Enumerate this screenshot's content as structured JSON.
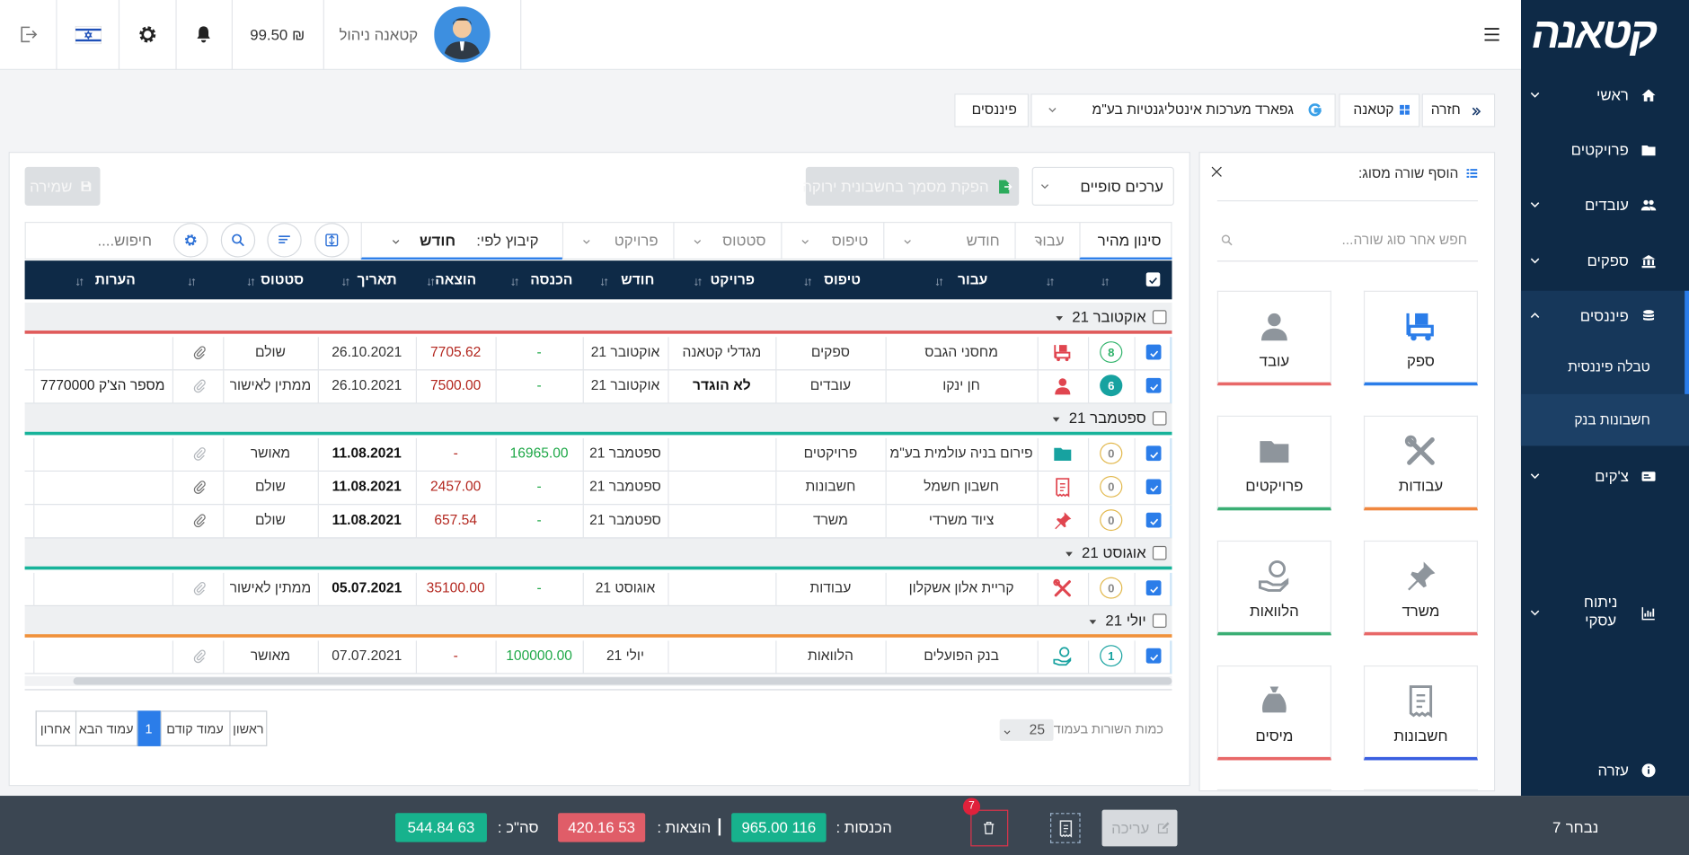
{
  "sidebar": {
    "logo": "קטאנה",
    "menu": [
      "ראשי",
      "פרויקטים",
      "עובדים",
      "ספקים",
      "פיננסים",
      "צ'קים",
      "ניתוח עסקי",
      "עזרה"
    ],
    "submenu": [
      "טבלה פיננסית",
      "חשבונות בנק"
    ]
  },
  "topbar": {
    "user": "קטאנה ניהול",
    "balance": "₪ 99.50"
  },
  "breadcrumb": [
    "חזרה",
    "קטאנה",
    "גפארד מערכות אינטליגנטיות בע\"מ",
    "פיננסים"
  ],
  "add_panel": {
    "title": "הוסף שורה מסוג:",
    "search_placeholder": "חפש אחר סוג שורה...",
    "types": [
      "ספק",
      "עובד",
      "עבודות",
      "פרויקטים",
      "משרד",
      "הלוואות",
      "חשבונות",
      "מיסים"
    ]
  },
  "toolbar": {
    "view": "ערכים סופיים",
    "invoice_button": "הפקת מסמך בחשבונית ירוקה",
    "save_button": "שמירה"
  },
  "filters": {
    "tabs": [
      "סינון מהיר",
      "עבור",
      "חודש",
      "טיפוס",
      "סטטוס",
      "פרויקט"
    ],
    "group_by_label": "קיבוץ לפי:",
    "group_by": "חודש",
    "search_placeholder": "חיפוש...."
  },
  "table": {
    "columns": {
      "for": "עבור",
      "type": "טיפוס",
      "project": "פרויקט",
      "month": "חודש",
      "income": "הכנסה",
      "expense": "הוצאה",
      "date": "תאריך",
      "status": "סטטוס",
      "notes": "הערות"
    },
    "groups": [
      {
        "label": "אוקטובר 21",
        "rows": [
          {
            "count": "8",
            "for": "מחסני הגבס",
            "type": "ספקים",
            "project": "מגדלי קטאנה",
            "month": "אוקטובר 21",
            "income": "-",
            "expense": "7705.62",
            "date": "26.10.2021",
            "status": "שולם"
          },
          {
            "count": "6",
            "for": "חן ינקו",
            "type": "עובדים",
            "project": "לא הוגדר",
            "month": "אוקטובר 21",
            "income": "-",
            "expense": "7500.00",
            "date": "26.10.2021",
            "status": "ממתין לאישור",
            "notes": "מספר הצ'ק 7770000"
          }
        ]
      },
      {
        "label": "ספטמבר 21",
        "rows": [
          {
            "count": "0",
            "for": "פירום בניה עולמית בע\"מ",
            "type": "פרויקטים",
            "month": "ספטמבר 21",
            "income": "16965.00",
            "expense": "-",
            "date": "11.08.2021",
            "status": "מאושר"
          },
          {
            "count": "0",
            "for": "חשבון חשמל",
            "type": "חשבונות",
            "month": "ספטמבר 21",
            "income": "-",
            "expense": "2457.00",
            "date": "11.08.2021",
            "status": "שולם"
          },
          {
            "count": "0",
            "for": "ציוד משרדי",
            "type": "משרד",
            "month": "ספטמבר 21",
            "income": "-",
            "expense": "657.54",
            "date": "11.08.2021",
            "status": "שולם"
          }
        ]
      },
      {
        "label": "אוגוסט 21",
        "rows": [
          {
            "count": "0",
            "for": "קריית אלון אשקלון",
            "type": "עבודות",
            "month": "אוגוסט 21",
            "income": "-",
            "expense": "35100.00",
            "date": "05.07.2021",
            "status": "ממתין לאישור"
          }
        ]
      },
      {
        "label": "יולי 21",
        "rows": [
          {
            "count": "1",
            "for": "בנק הפועלים",
            "type": "הלוואות",
            "month": "יולי 21",
            "income": "100000.00",
            "expense": "-",
            "date": "07.07.2021",
            "status": "מאושר"
          }
        ]
      }
    ]
  },
  "pagination": {
    "buttons": [
      "ראשון",
      "עמוד קודם",
      "1",
      "עמוד הבא",
      "אחרון"
    ],
    "rows_per_page_label": "כמות השורות בעמוד",
    "rows_per_page": "25"
  },
  "footer": {
    "selected_label": "נבחר",
    "selected": "7",
    "edit_button": "עריכה",
    "delete_badge": "7",
    "income_label": "הכנסות :",
    "income": "116 965.00",
    "expense_label": "הוצאות :",
    "expense": "53 420.16",
    "total_label": "סה\"כ :",
    "total": "63 544.84"
  }
}
